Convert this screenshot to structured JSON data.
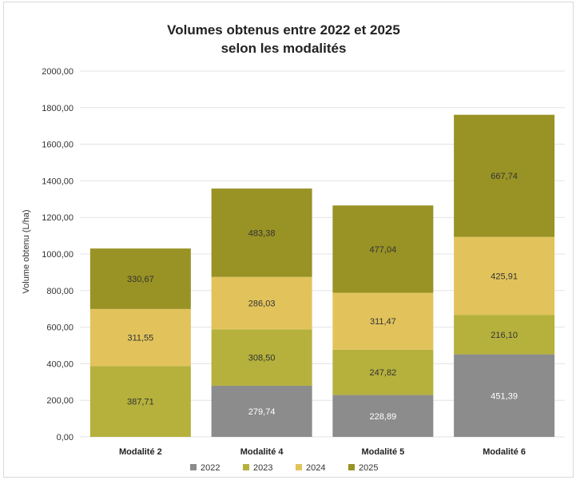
{
  "chart_data": {
    "type": "bar",
    "stacked": true,
    "title": [
      "Volumes obtenus entre 2022 et 2025",
      "selon les modalités"
    ],
    "ylabel": "Volume obtenu (L/ha)",
    "xlabel": "",
    "ylim": [
      0,
      2000
    ],
    "yticks": [
      "0,00",
      "200,00",
      "400,00",
      "600,00",
      "800,00",
      "1000,00",
      "1200,00",
      "1400,00",
      "1600,00",
      "1800,00",
      "2000,00"
    ],
    "categories": [
      "Modalité 2",
      "Modalité 4",
      "Modalité 5",
      "Modalité 6"
    ],
    "grid": true,
    "legend_position": "bottom",
    "series": [
      {
        "name": "2022",
        "color": "#8c8c8c",
        "label_color": "#ffffff",
        "values": [
          null,
          279.74,
          228.89,
          451.39
        ],
        "labels": [
          "",
          "279,74",
          "228,89",
          "451,39"
        ]
      },
      {
        "name": "2023",
        "color": "#b5b13c",
        "label_color": "#333333",
        "values": [
          387.71,
          308.5,
          247.82,
          216.1
        ],
        "labels": [
          "387,71",
          "308,50",
          "247,82",
          "216,10"
        ]
      },
      {
        "name": "2024",
        "color": "#e2c35b",
        "label_color": "#333333",
        "values": [
          311.55,
          286.03,
          311.47,
          425.91
        ],
        "labels": [
          "311,55",
          "286,03",
          "311,47",
          "425,91"
        ]
      },
      {
        "name": "2025",
        "color": "#999225",
        "label_color": "#333333",
        "values": [
          330.67,
          483.38,
          477.04,
          667.74
        ],
        "labels": [
          "330,67",
          "483,38",
          "477,04",
          "667,74"
        ]
      }
    ]
  }
}
